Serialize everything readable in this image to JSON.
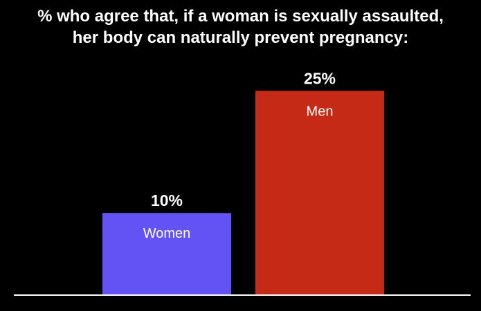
{
  "chart_data": {
    "type": "bar",
    "title": "% who agree that, if a woman is sexually assaulted, her body can naturally prevent pregnancy:",
    "title_lines": [
      "% who agree that, if a woman is sexually assaulted,",
      "her body can naturally prevent pregnancy:"
    ],
    "categories": [
      "Women",
      "Men"
    ],
    "values": [
      10,
      25
    ],
    "value_labels": [
      "10%",
      "25%"
    ],
    "colors": [
      "#6353f5",
      "#c52a16"
    ],
    "ylim": [
      0,
      27.5
    ],
    "xlabel": "",
    "ylabel": "",
    "grid": false,
    "legend": "none",
    "background": "#000000",
    "axis_color": "#ffffff"
  }
}
